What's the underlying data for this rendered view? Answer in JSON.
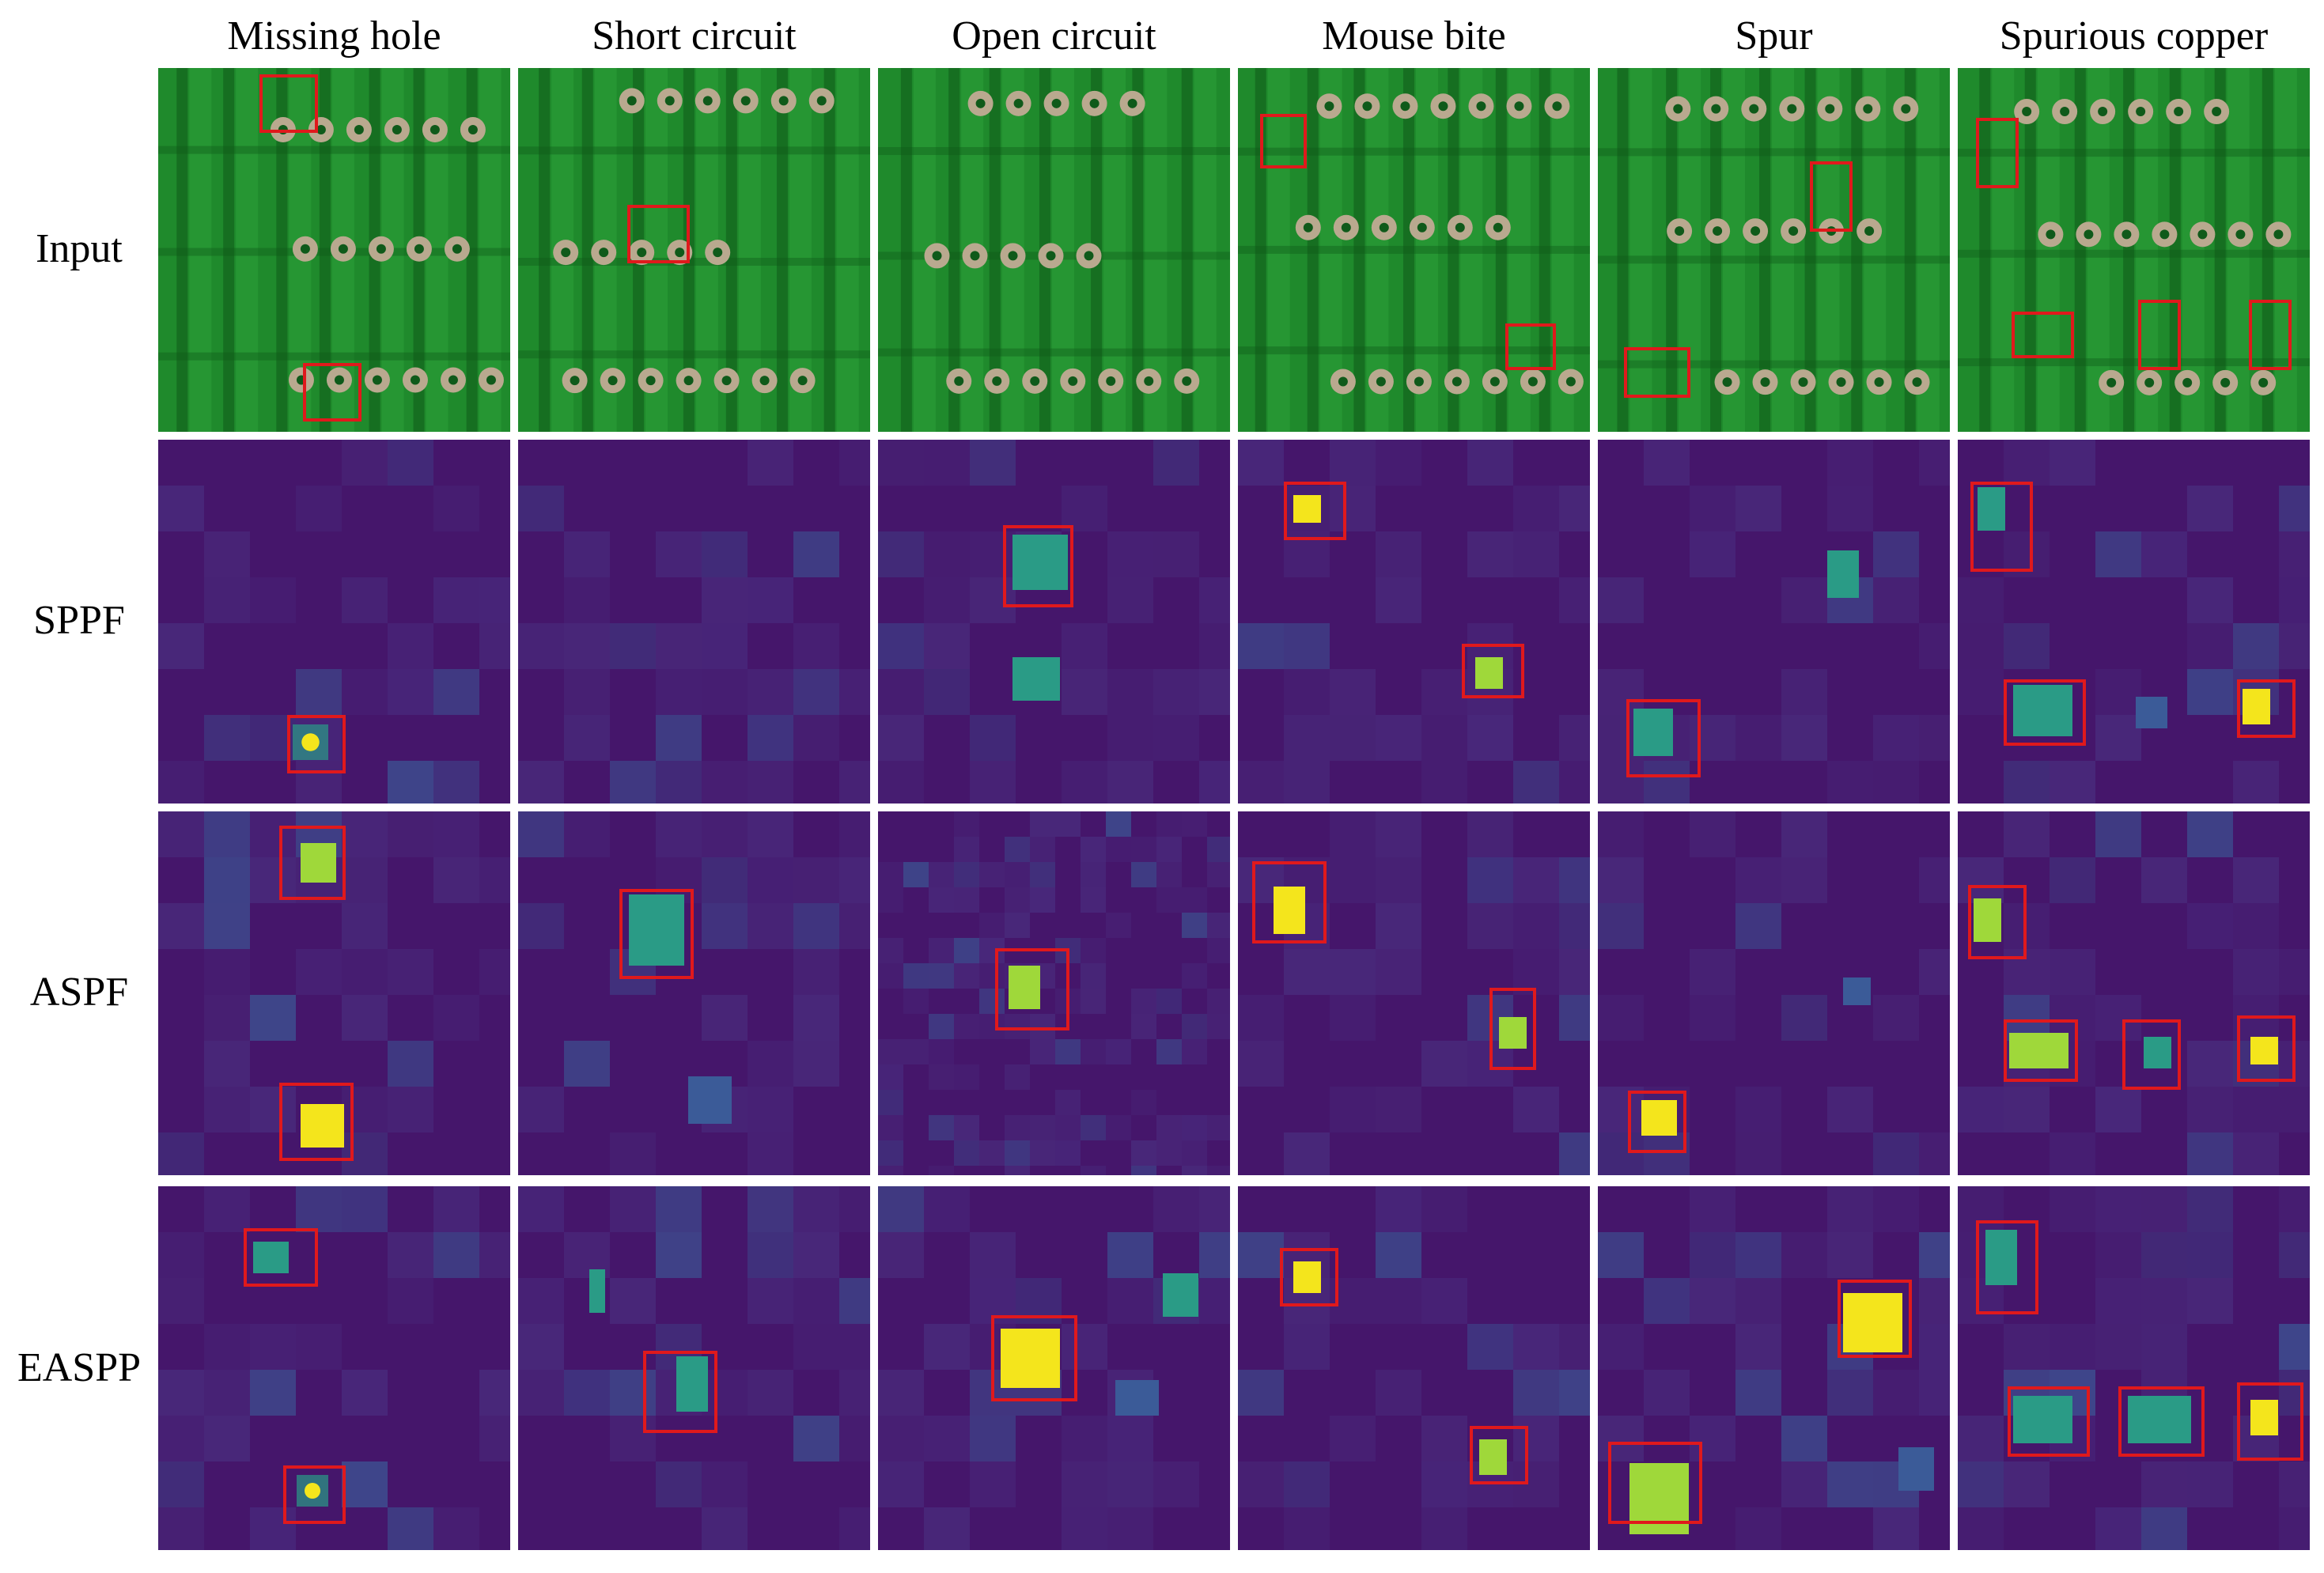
{
  "columns": [
    "Missing hole",
    "Short circuit",
    "Open circuit",
    "Mouse bite",
    "Spur",
    "Spurious copper"
  ],
  "rows": [
    "Input",
    "SPPF",
    "ASPF",
    "EASPP"
  ],
  "colors": {
    "pcb_base": "#1f8a2c",
    "pcb_trace": "#2fa53b",
    "pcb_dark": "#0f5a1a",
    "pad": "#b9a98f",
    "heat_base": "#45166b",
    "heat_mid": "#3b5b98",
    "heat_teal": "#2a9b86",
    "heat_green": "#9fd83a",
    "heat_yellow": "#f4e51c",
    "box": "#e0191c"
  }
}
